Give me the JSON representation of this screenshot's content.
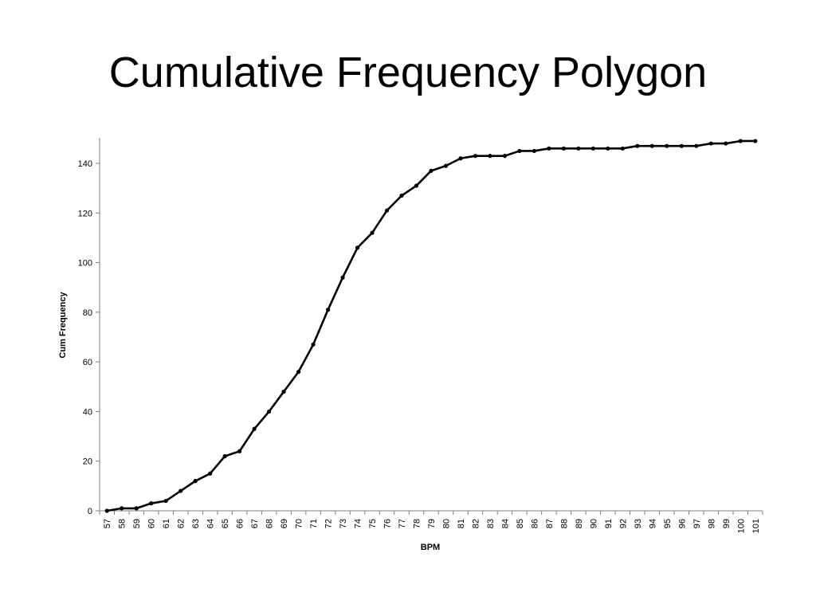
{
  "slide": {
    "title": "Cumulative Frequency Polygon"
  },
  "chart_data": {
    "type": "line",
    "title": "",
    "xlabel": "BPM",
    "ylabel": "Cum Frequency",
    "x": [
      57,
      58,
      59,
      60,
      61,
      62,
      63,
      64,
      65,
      66,
      67,
      68,
      69,
      70,
      71,
      72,
      73,
      74,
      75,
      76,
      77,
      78,
      79,
      80,
      81,
      82,
      83,
      84,
      85,
      86,
      87,
      88,
      89,
      90,
      91,
      92,
      93,
      94,
      95,
      96,
      97,
      98,
      99,
      100,
      101
    ],
    "series": [
      {
        "name": "",
        "values": [
          0,
          1,
          1,
          3,
          4,
          8,
          12,
          15,
          22,
          24,
          33,
          40,
          48,
          56,
          67,
          81,
          94,
          106,
          112,
          121,
          127,
          131,
          137,
          139,
          142,
          143,
          143,
          143,
          145,
          145,
          146,
          146,
          146,
          146,
          146,
          146,
          147,
          147,
          147,
          147,
          147,
          148,
          148,
          149,
          149
        ]
      }
    ],
    "ylim": [
      0,
      150
    ],
    "yticks": [
      0,
      20,
      40,
      60,
      80,
      100,
      120,
      140
    ],
    "grid": false,
    "legend": "none",
    "line_color": "#000000",
    "marker": "circle"
  }
}
